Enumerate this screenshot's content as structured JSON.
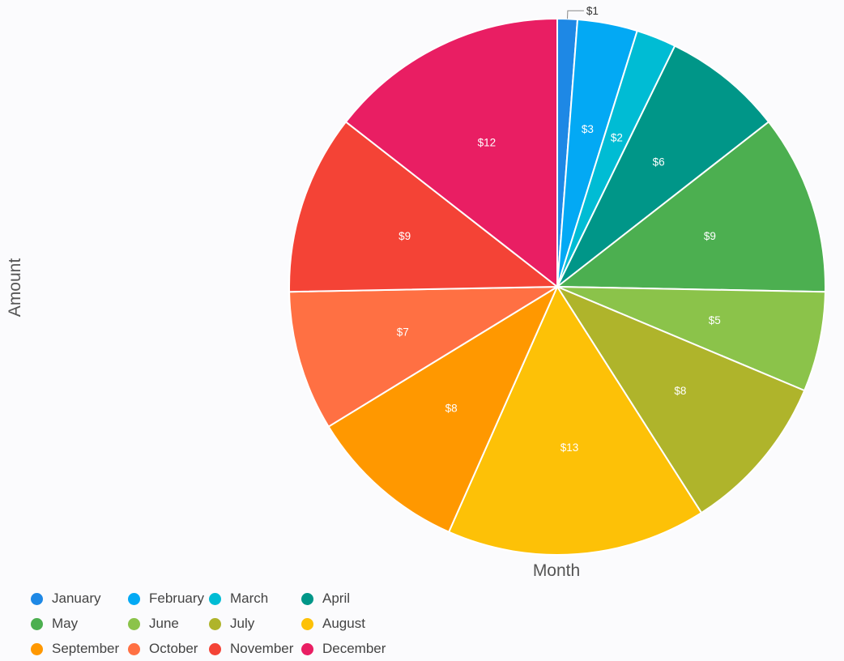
{
  "chart_data": {
    "type": "pie",
    "xlabel": "Month",
    "ylabel": "Amount",
    "value_prefix": "$",
    "legend_position": "bottom-left",
    "categories": [
      "January",
      "February",
      "March",
      "April",
      "May",
      "June",
      "July",
      "August",
      "September",
      "October",
      "November",
      "December"
    ],
    "values": [
      1,
      3,
      2,
      6,
      9,
      5,
      8,
      13,
      8,
      7,
      9,
      12
    ],
    "colors": [
      "#1e88e5",
      "#03a9f4",
      "#00bcd4",
      "#009688",
      "#4caf50",
      "#8bc34a",
      "#afb42b",
      "#fdc107",
      "#ff9800",
      "#ff7043",
      "#f44336",
      "#e91e63"
    ],
    "labels": [
      "$1",
      "$3",
      "$2",
      "$6",
      "$9",
      "$5",
      "$8",
      "$13",
      "$8",
      "$7",
      "$9",
      "$12"
    ]
  }
}
